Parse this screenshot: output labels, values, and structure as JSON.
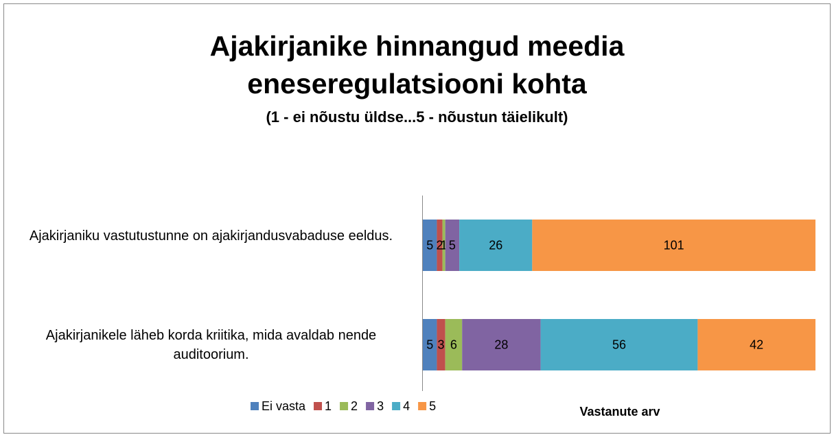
{
  "chart_data": {
    "type": "stacked-bar-horizontal",
    "title": "Ajakirjanike hinnangud meedia eneseregulatsiooni kohta",
    "subtitle": "(1 - ei nõustu üldse...5 - nõustun täielikult)",
    "x_label": "Vastanute arv",
    "categories": [
      "Ajakirjaniku vastutustunne on ajakirjandusvabaduse eeldus.",
      "Ajakirjanikele läheb korda kriitika, mida avaldab nende auditoorium."
    ],
    "series": [
      {
        "name": "Ei vasta",
        "color": "#4f81bd",
        "values": [
          5,
          5
        ]
      },
      {
        "name": "1",
        "color": "#c0504d",
        "values": [
          2,
          3
        ]
      },
      {
        "name": "2",
        "color": "#9bbb59",
        "values": [
          1,
          6
        ]
      },
      {
        "name": "3",
        "color": "#8064a2",
        "values": [
          5,
          28
        ]
      },
      {
        "name": "4",
        "color": "#4bacc6",
        "values": [
          26,
          56
        ]
      },
      {
        "name": "5",
        "color": "#f79646",
        "values": [
          101,
          42
        ]
      }
    ],
    "legend": "bottom"
  }
}
